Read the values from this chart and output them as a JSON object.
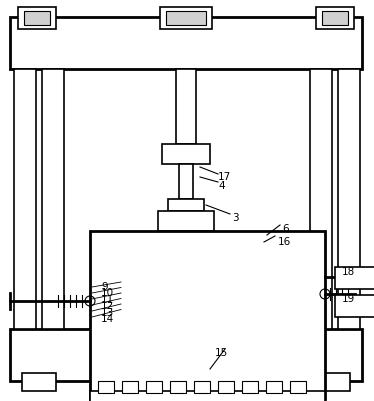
{
  "bg_color": "#ffffff",
  "line_color": "#000000",
  "figsize": [
    3.74,
    4.02
  ],
  "dpi": 100
}
